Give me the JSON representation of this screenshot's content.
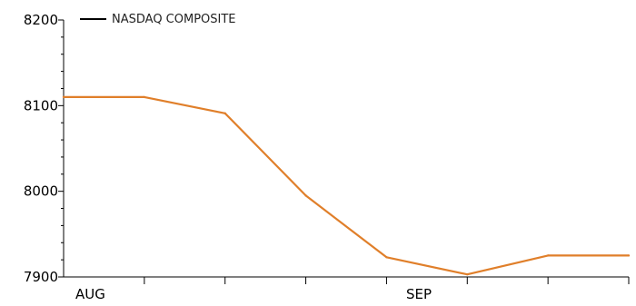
{
  "chart_data": {
    "type": "line",
    "title": "",
    "xlabel": "",
    "ylabel": "",
    "x_tick_labels": [
      "AUG",
      "SEP"
    ],
    "y_ticks": [
      7900,
      8000,
      8100,
      8200
    ],
    "ylim": [
      7900,
      8200
    ],
    "grid": false,
    "legend_position": "top-left",
    "series": [
      {
        "name": "NASDAQ COMPOSITE",
        "color": "#e07f2a",
        "legend_color": "#000000",
        "values": [
          8110,
          8110,
          8091,
          7995,
          7923,
          7903,
          7925,
          7925
        ]
      }
    ]
  }
}
